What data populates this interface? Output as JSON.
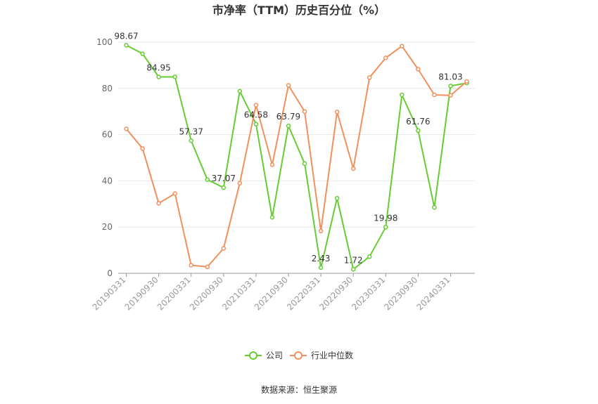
{
  "chart_data": {
    "type": "line",
    "title": "市净率（TTM）历史百分位（%）",
    "xlabel": "",
    "ylabel": "",
    "ylim": [
      0,
      100
    ],
    "yticks": [
      "0",
      "20",
      "40",
      "60",
      "80",
      "100"
    ],
    "x": [
      "20190331",
      "20190630",
      "20190930",
      "20191231",
      "20200331",
      "20200630",
      "20200930",
      "20201231",
      "20210331",
      "20210630",
      "20210930",
      "20211231",
      "20220331",
      "20220630",
      "20220930",
      "20221231",
      "20230331",
      "20230630",
      "20230930",
      "20231231",
      "20240331",
      "20240630"
    ],
    "xtick_labels": [
      "20190331",
      "20190930",
      "20200331",
      "20200930",
      "20210331",
      "20210930",
      "20220331",
      "20220930",
      "20230331",
      "20230930",
      "20240331"
    ],
    "series": [
      {
        "name": "公司",
        "color": "#66cc33",
        "values": [
          98.67,
          95,
          84.95,
          85,
          57.37,
          40.5,
          37.07,
          78.8,
          64.58,
          24.2,
          63.79,
          47.5,
          2.43,
          32.5,
          1.72,
          7.2,
          19.98,
          77.2,
          61.76,
          28.5,
          81.03,
          82.3
        ]
      },
      {
        "name": "行业中位数",
        "color": "#f0905c",
        "values": [
          62.5,
          54,
          30.3,
          34.5,
          3.5,
          2.8,
          10.8,
          39,
          72.8,
          47,
          81.3,
          70,
          18.3,
          69.8,
          45.3,
          84.7,
          93.2,
          98.3,
          88.3,
          77.2,
          77,
          83
        ]
      }
    ],
    "data_labels": [
      {
        "series": 0,
        "index": 0,
        "text": "98.67"
      },
      {
        "series": 0,
        "index": 2,
        "text": "84.95"
      },
      {
        "series": 0,
        "index": 4,
        "text": "57.37"
      },
      {
        "series": 0,
        "index": 6,
        "text": "37.07"
      },
      {
        "series": 0,
        "index": 8,
        "text": "64.58"
      },
      {
        "series": 0,
        "index": 10,
        "text": "63.79"
      },
      {
        "series": 0,
        "index": 12,
        "text": "2.43"
      },
      {
        "series": 0,
        "index": 14,
        "text": "1.72"
      },
      {
        "series": 0,
        "index": 16,
        "text": "19.98"
      },
      {
        "series": 0,
        "index": 18,
        "text": "61.76"
      },
      {
        "series": 0,
        "index": 20,
        "text": "81.03"
      }
    ],
    "grid": true,
    "legend_placement": "bottom-center"
  },
  "source": "数据来源：恒生聚源"
}
